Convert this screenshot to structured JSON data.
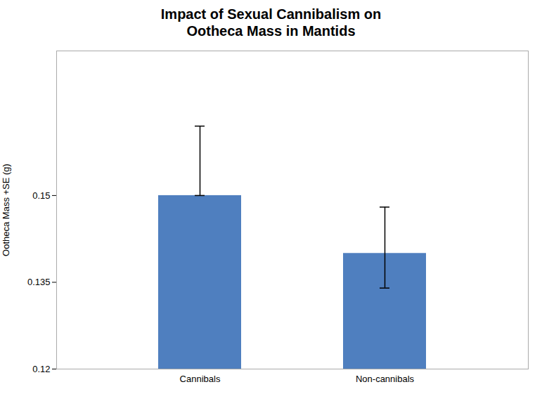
{
  "chart_data": {
    "type": "bar",
    "title": "Impact of Sexual Cannibalism on\nOotheca Mass in Mantids",
    "ylabel": "Ootheca Mass +SE (g)",
    "categories": [
      "Cannibals",
      "Non-cannibals"
    ],
    "values": [
      0.15,
      0.14
    ],
    "errors_upper": [
      0.012,
      0.008
    ],
    "errors_lower": [
      0.0,
      0.006
    ],
    "color": "#4f7fbf",
    "ylim": [
      0.12,
      0.175
    ],
    "yticks": [
      0.12,
      0.135,
      0.15
    ]
  }
}
